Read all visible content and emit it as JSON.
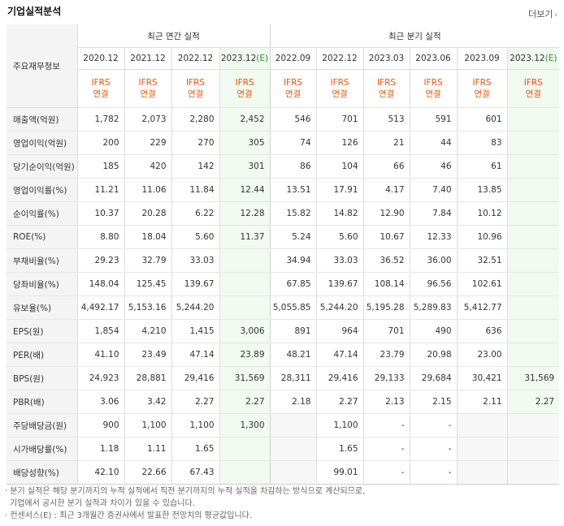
{
  "title": "기업실적분석",
  "more": "더보기",
  "header": {
    "row_label": "주요재무정보",
    "annual_group": "최근 연간 실적",
    "quarter_group": "최근 분기 실적",
    "periods": [
      {
        "label": "2020.12",
        "est": false,
        "std1": "IFRS",
        "std2": "연결"
      },
      {
        "label": "2021.12",
        "est": false,
        "std1": "IFRS",
        "std2": "연결"
      },
      {
        "label": "2022.12",
        "est": false,
        "std1": "IFRS",
        "std2": "연결"
      },
      {
        "label": "2023.12",
        "suffix": "(E)",
        "est": true,
        "std1": "IFRS",
        "std2": "연결"
      },
      {
        "label": "2022.09",
        "est": false,
        "std1": "IFRS",
        "std2": "연결"
      },
      {
        "label": "2022.12",
        "est": false,
        "std1": "IFRS",
        "std2": "연결"
      },
      {
        "label": "2023.03",
        "est": false,
        "std1": "IFRS",
        "std2": "연결"
      },
      {
        "label": "2023.06",
        "est": false,
        "std1": "IFRS",
        "std2": "연결"
      },
      {
        "label": "2023.09",
        "est": false,
        "std1": "IFRS",
        "std2": "연결"
      },
      {
        "label": "2023.12",
        "suffix": "(E)",
        "est": true,
        "std1": "IFRS",
        "std2": "연결"
      }
    ]
  },
  "rows": [
    {
      "label": "매출액(억원)",
      "group_start": true,
      "values": [
        "1,782",
        "2,073",
        "2,280",
        "2,452",
        "546",
        "701",
        "513",
        "591",
        "601",
        ""
      ]
    },
    {
      "label": "영업이익(억원)",
      "values": [
        "200",
        "229",
        "270",
        "305",
        "74",
        "126",
        "21",
        "44",
        "83",
        ""
      ]
    },
    {
      "label": "당기순이익(억원)",
      "values": [
        "185",
        "420",
        "142",
        "301",
        "86",
        "104",
        "66",
        "46",
        "61",
        ""
      ]
    },
    {
      "label": "영업이익률(%)",
      "group_start": true,
      "values": [
        "11.21",
        "11.06",
        "11.84",
        "12.44",
        "13.51",
        "17.91",
        "4.17",
        "7.40",
        "13.85",
        ""
      ]
    },
    {
      "label": "순이익률(%)",
      "values": [
        "10.37",
        "20.28",
        "6.22",
        "12.28",
        "15.82",
        "14.82",
        "12.90",
        "7.84",
        "10.12",
        ""
      ]
    },
    {
      "label": "ROE(%)",
      "values": [
        "8.80",
        "18.04",
        "5.60",
        "11.37",
        "5.24",
        "5.60",
        "10.67",
        "12.33",
        "10.96",
        ""
      ]
    },
    {
      "label": "부채비율(%)",
      "group_start": true,
      "values": [
        "29.23",
        "32.79",
        "33.03",
        "",
        "34.94",
        "33.03",
        "36.52",
        "36.00",
        "32.51",
        ""
      ]
    },
    {
      "label": "당좌비율(%)",
      "values": [
        "148.04",
        "125.45",
        "139.67",
        "",
        "67.85",
        "139.67",
        "108.14",
        "96.56",
        "102.61",
        ""
      ]
    },
    {
      "label": "유보율(%)",
      "values": [
        "4,492.17",
        "5,153.16",
        "5,244.20",
        "",
        "5,055.85",
        "5,244.20",
        "5,195.28",
        "5,289.83",
        "5,412.77",
        ""
      ]
    },
    {
      "label": "EPS(원)",
      "group_start": true,
      "values": [
        "1,854",
        "4,210",
        "1,415",
        "3,006",
        "891",
        "964",
        "701",
        "490",
        "636",
        ""
      ]
    },
    {
      "label": "PER(배)",
      "values": [
        "41.10",
        "23.49",
        "47.14",
        "23.89",
        "48.21",
        "47.14",
        "23.79",
        "20.98",
        "23.00",
        ""
      ]
    },
    {
      "label": "BPS(원)",
      "values": [
        "24,923",
        "28,881",
        "29,416",
        "31,569",
        "28,311",
        "29,416",
        "29,133",
        "29,684",
        "30,421",
        "31,569"
      ]
    },
    {
      "label": "PBR(배)",
      "values": [
        "3.06",
        "3.42",
        "2.27",
        "2.27",
        "2.18",
        "2.27",
        "2.13",
        "2.15",
        "2.11",
        "2.27"
      ]
    },
    {
      "label": "주당배당금(원)",
      "group_start": true,
      "values": [
        "900",
        "1,100",
        "1,100",
        "1,300",
        "",
        "1,100",
        "-",
        "-",
        "",
        ""
      ]
    },
    {
      "label": "시가배당률(%)",
      "values": [
        "1.18",
        "1.11",
        "1.65",
        "",
        "",
        "1.65",
        "-",
        "-",
        "",
        ""
      ]
    },
    {
      "label": "배당성향(%)",
      "values": [
        "42.10",
        "22.66",
        "67.43",
        "",
        "",
        "99.01",
        "-",
        "-",
        "",
        ""
      ]
    }
  ],
  "notes": [
    "· 분기 실적은 해당 분기까지의 누적 실적에서 직전 분기까지의 누적 실적을 차감하는 방식으로 계산되므로,",
    "  기업에서 공시한 분기 실적과 차이가 있을 수 있습니다.",
    "· 컨센서스(E) : 최근 3개월간 증권사에서 발표한 전망치의 평균값입니다."
  ]
}
